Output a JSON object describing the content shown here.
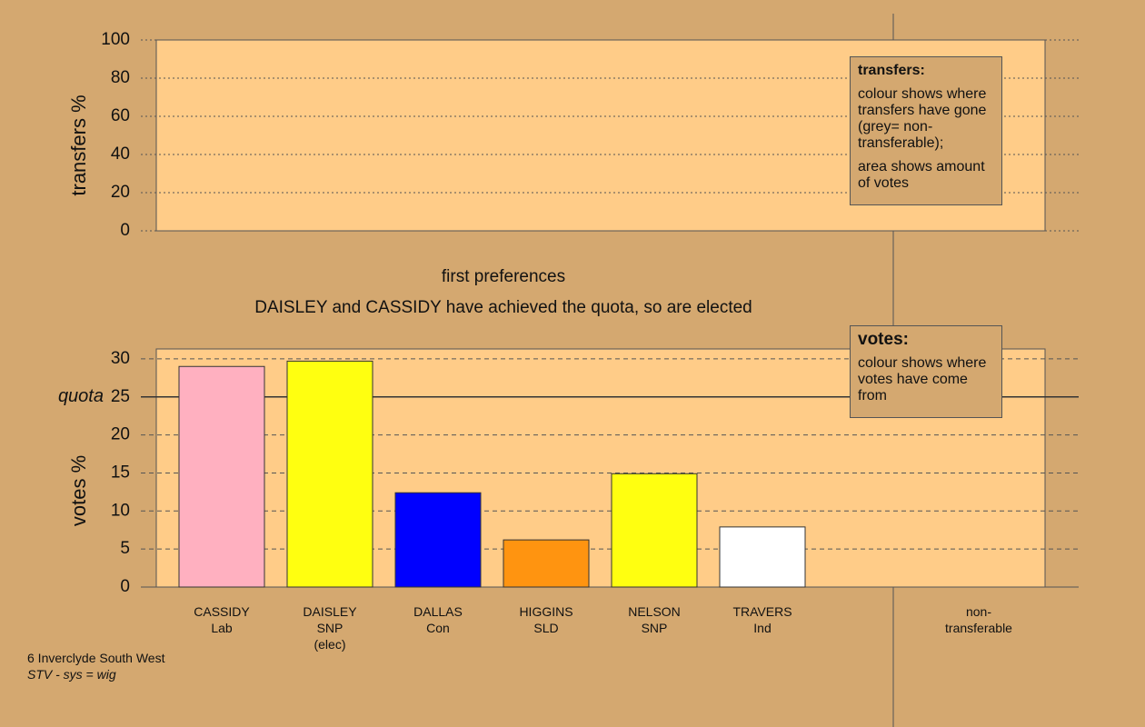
{
  "chart_data": [
    {
      "type": "bar",
      "y_label": "transfers %",
      "ylim": [
        0,
        100
      ],
      "yticks": [
        0,
        20,
        40,
        60,
        80,
        100
      ],
      "legend": {
        "title": "transfers:",
        "lines": [
          "colour shows where transfers have gone (grey= non-transferable);",
          "area shows amount of votes"
        ]
      }
    },
    {
      "type": "bar",
      "y_label": "votes %",
      "categories": [
        "CASSIDY",
        "DAISLEY",
        "DALLAS",
        "HIGGINS",
        "NELSON",
        "TRAVERS",
        "non-transferable"
      ],
      "parties": [
        "Lab",
        "SNP",
        "Con",
        "SLD",
        "SNP",
        "Ind",
        null
      ],
      "notes": [
        null,
        "(elec)",
        null,
        null,
        null,
        null,
        null
      ],
      "values": [
        29.0,
        29.7,
        12.4,
        6.2,
        14.9,
        7.9,
        null
      ],
      "colors": [
        "#ffb0c0",
        "#ffff10",
        "#0000ff",
        "#ff9410",
        "#ffff10",
        "#ffffff",
        null
      ],
      "ylim": [
        0,
        31.3
      ],
      "yticks": [
        0,
        5,
        10,
        15,
        20,
        25,
        30
      ],
      "quota": {
        "label": "quota",
        "value": 25
      },
      "legend": {
        "title": "votes:",
        "lines": [
          "colour shows where votes have come from"
        ]
      }
    }
  ],
  "headings": [
    "first preferences",
    "DAISLEY and CASSIDY have achieved the quota, so are elected"
  ],
  "footer": {
    "constituency": "6 Inverclyde South West",
    "system": "STV - sys = wig"
  }
}
